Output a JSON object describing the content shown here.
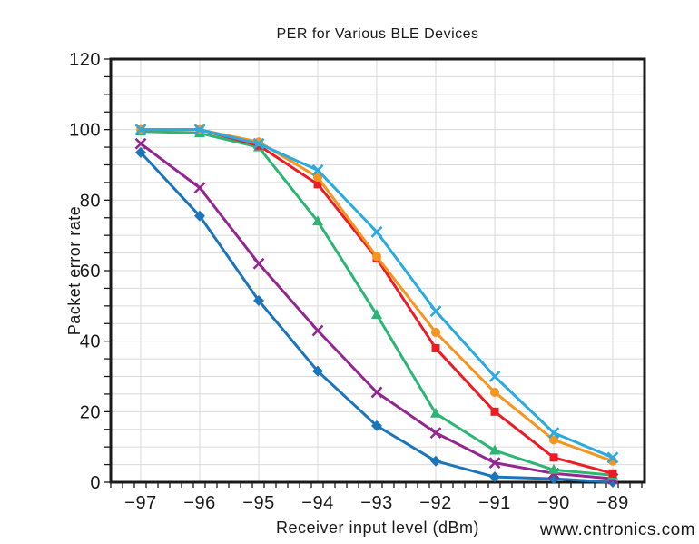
{
  "watermark": {
    "text": "www.cntronics.com",
    "color": "#cde8b8"
  },
  "chart_data": {
    "type": "line",
    "title": "PER for Various BLE Devices",
    "xlabel": "Receiver input level (dBm)",
    "ylabel": "Packet error rate",
    "x": [
      -97,
      -96,
      -95,
      -94,
      -93,
      -92,
      -91,
      -90,
      -89
    ],
    "x_tick_labels": [
      "−97",
      "−96",
      "−95",
      "−94",
      "−93",
      "−92",
      "−91",
      "−90",
      "−89"
    ],
    "y_tick_labels": [
      "0",
      "20",
      "40",
      "60",
      "80",
      "100",
      "120"
    ],
    "ylim": [
      0,
      120
    ],
    "y_major_step": 20,
    "y_minor_step": 5,
    "grid": true,
    "legend": "none",
    "border_color": "#1a1a1a",
    "gridline_color": "#d9d9d9",
    "series": [
      {
        "name": "blue-diamond",
        "color": "#1b75bb",
        "marker": "diamond",
        "values": [
          93.5,
          75.5,
          51.5,
          31.5,
          16,
          6,
          1.5,
          1,
          0
        ]
      },
      {
        "name": "purple-x",
        "color": "#93278f",
        "marker": "x",
        "values": [
          96,
          83.5,
          62,
          43,
          25.5,
          14,
          5.5,
          2.5,
          1
        ]
      },
      {
        "name": "green-triangle",
        "color": "#2bb673",
        "marker": "triangle",
        "values": [
          99.5,
          99,
          95,
          74,
          47.5,
          19.5,
          9,
          3.5,
          2
        ]
      },
      {
        "name": "red-square",
        "color": "#ed1c24",
        "marker": "square",
        "values": [
          100,
          100,
          95.5,
          84.5,
          63.5,
          38,
          20,
          7,
          2.5
        ]
      },
      {
        "name": "orange-circle",
        "color": "#f7941e",
        "marker": "circle",
        "values": [
          100,
          100,
          96.5,
          86.5,
          64,
          42.5,
          25.5,
          12,
          6
        ]
      },
      {
        "name": "cyan-x",
        "color": "#29abe2",
        "marker": "x",
        "values": [
          100,
          100,
          96,
          88.5,
          71,
          48.5,
          30,
          14,
          7
        ]
      }
    ]
  }
}
